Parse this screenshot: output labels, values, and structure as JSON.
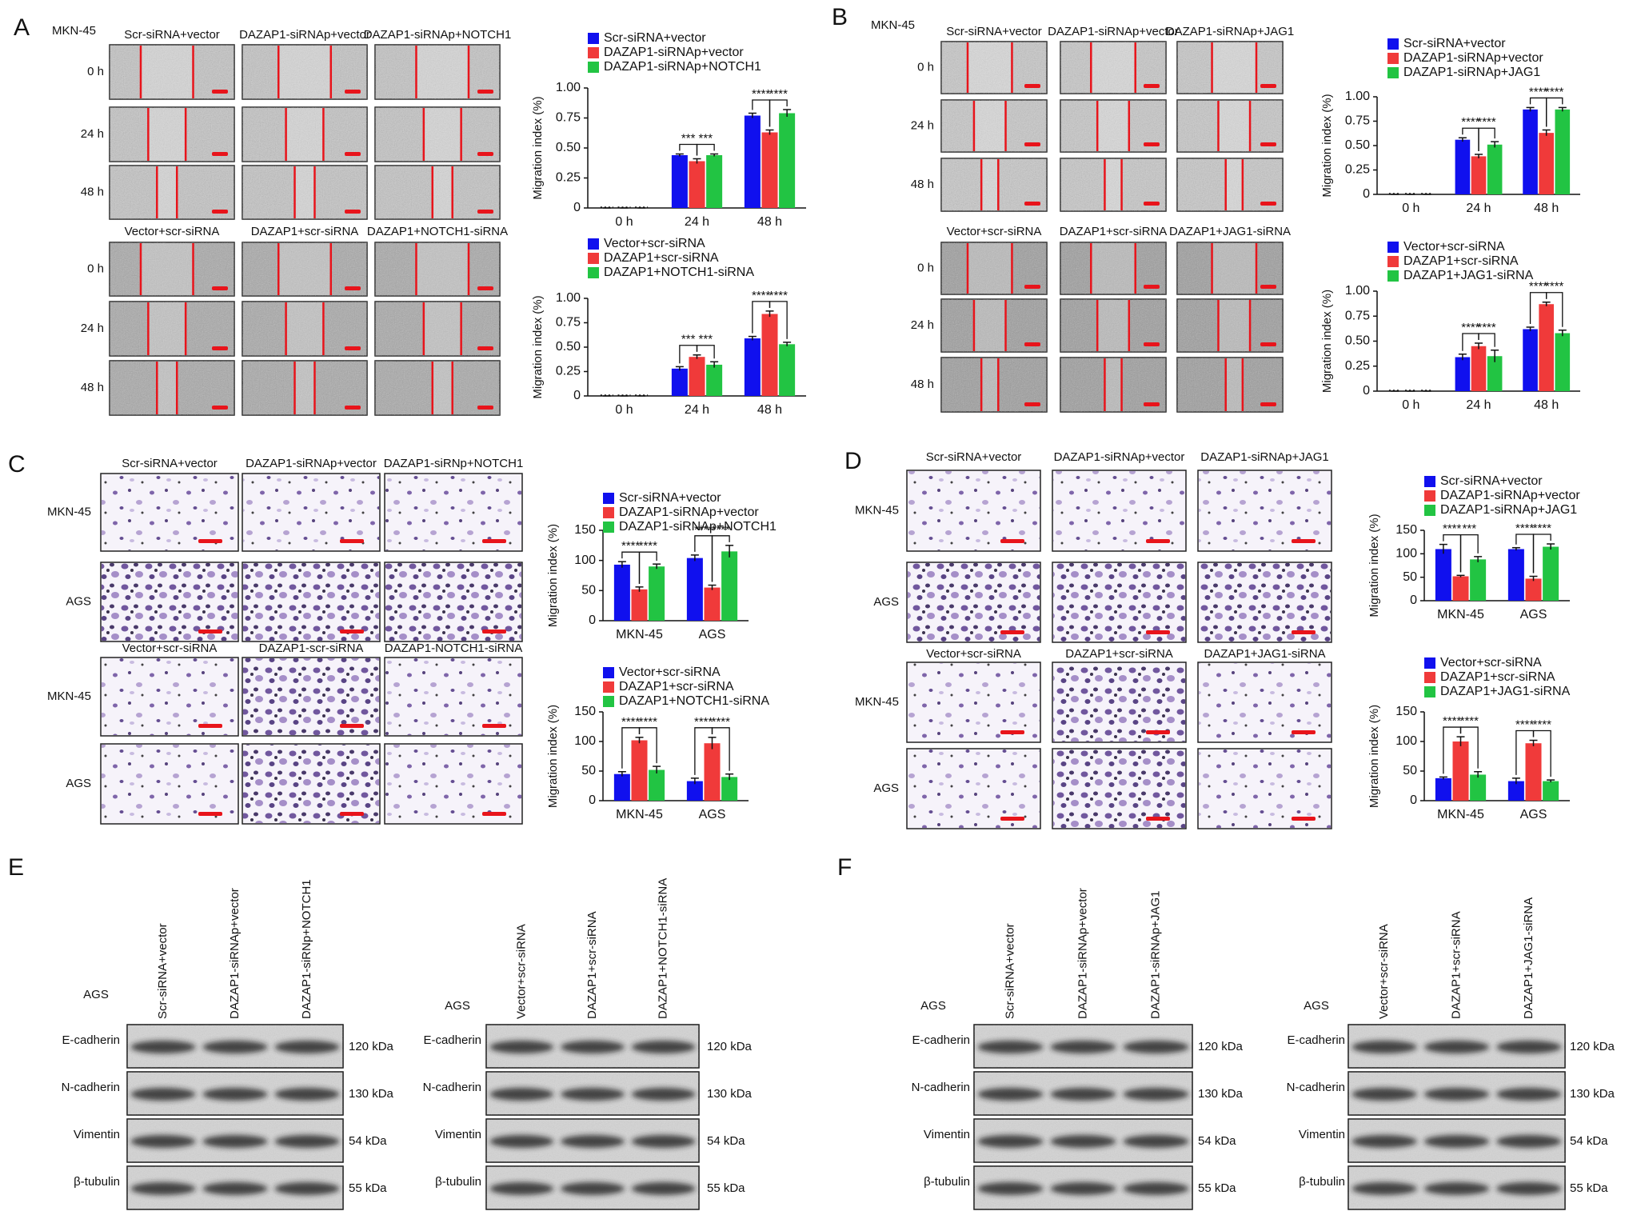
{
  "panel_labels": [
    "A",
    "B",
    "C",
    "D",
    "E",
    "F"
  ],
  "wound_assays": [
    {
      "cell_line": "MKN-45",
      "groups": [
        {
          "columns": [
            "Scr-siRNA+vector",
            "DAZAP1-siRNAp+vector",
            "DAZAP1-siRNAp+NOTCH1"
          ],
          "rows": [
            "0 h",
            "24 h",
            "48 h"
          ]
        },
        {
          "columns": [
            "Vector+scr-siRNA",
            "DAZAP1+scr-siRNA",
            "DAZAP1+NOTCH1-siRNA"
          ],
          "rows": [
            "0 h",
            "24 h",
            "48 h"
          ]
        }
      ]
    },
    {
      "cell_line": "MKN-45",
      "groups": [
        {
          "columns": [
            "Scr-siRNA+vector",
            "DAZAP1-siRNAp+vector",
            "DAZAP1-siRNAp+JAG1"
          ],
          "rows": [
            "0 h",
            "24 h",
            "48 h"
          ]
        },
        {
          "columns": [
            "Vector+scr-siRNA",
            "DAZAP1+scr-siRNA",
            "DAZAP1+JAG1-siRNA"
          ],
          "rows": [
            "0 h",
            "24 h",
            "48 h"
          ]
        }
      ]
    }
  ],
  "transwell_assays": [
    {
      "groups": [
        {
          "columns": [
            "Scr-siRNA+vector",
            "DAZAP1-siRNAp+vector",
            "DAZAP1-siRNp+NOTCH1"
          ],
          "rows": [
            "MKN-45",
            "AGS"
          ]
        },
        {
          "columns": [
            "Vector+scr-siRNA",
            "DAZAP1-scr-siRNA",
            "DAZAP1-NOTCH1-siRNA"
          ],
          "rows": [
            "MKN-45",
            "AGS"
          ]
        }
      ]
    },
    {
      "groups": [
        {
          "columns": [
            "Scr-siRNA+vector",
            "DAZAP1-siRNAp+vector",
            "DAZAP1-siRNAp+JAG1"
          ],
          "rows": [
            "MKN-45",
            "AGS"
          ]
        },
        {
          "columns": [
            "Vector+scr-siRNA",
            "DAZAP1+scr-siRNA",
            "DAZAP1+JAG1-siRNA"
          ],
          "rows": [
            "MKN-45",
            "AGS"
          ]
        }
      ]
    }
  ],
  "western_blots": [
    {
      "cell_line": "AGS",
      "lanes": [
        "Scr-siRNA+vector",
        "DAZAP1-siRNAp+vector",
        "DAZAP1-siRNp+NOTCH1"
      ],
      "proteins": [
        "E-cadherin",
        "N-cadherin",
        "Vimentin",
        "β-tubulin"
      ],
      "sizes": [
        "120 kDa",
        "130 kDa",
        "54 kDa",
        "55 kDa"
      ]
    },
    {
      "cell_line": "AGS",
      "lanes": [
        "Vector+scr-siRNA",
        "DAZAP1+scr-siRNA",
        "DAZAP1+NOTCH1-siRNA"
      ],
      "proteins": [
        "E-cadherin",
        "N-cadherin",
        "Vimentin",
        "β-tubulin"
      ],
      "sizes": [
        "120 kDa",
        "130 kDa",
        "54 kDa",
        "55 kDa"
      ]
    },
    {
      "cell_line": "AGS",
      "lanes": [
        "Scr-siRNA+vector",
        "DAZAP1-siRNAp+vector",
        "DAZAP1-siRNAp+JAG1"
      ],
      "proteins": [
        "E-cadherin",
        "N-cadherin",
        "Vimentin",
        "β-tubulin"
      ],
      "sizes": [
        "120 kDa",
        "130 kDa",
        "54 kDa",
        "55 kDa"
      ]
    },
    {
      "cell_line": "AGS",
      "lanes": [
        "Vector+scr-siRNA",
        "DAZAP1+scr-siRNA",
        "DAZAP1+JAG1-siRNA"
      ],
      "proteins": [
        "E-cadherin",
        "N-cadherin",
        "Vimentin",
        "β-tubulin"
      ],
      "sizes": [
        "120 kDa",
        "130 kDa",
        "54 kDa",
        "55 kDa"
      ]
    }
  ],
  "chart_data": [
    {
      "type": "bar",
      "y_label": "Migration index (%)",
      "categories": [
        "0 h",
        "24 h",
        "48 h"
      ],
      "ylim": [
        0,
        1.0
      ],
      "yticks": [
        0,
        {
          "value": 0.25,
          "label": "0.25"
        },
        {
          "value": 0.5,
          "label": "0.50"
        },
        {
          "value": 0.75,
          "label": "0.75"
        },
        {
          "value": 1.0,
          "label": "1.00"
        }
      ],
      "series": [
        {
          "name": "Scr-siRNA+vector",
          "color": "#1010ee",
          "values": [
            0,
            0.44,
            0.77
          ],
          "errors": [
            0,
            0.01,
            0.02
          ]
        },
        {
          "name": "DAZAP1-siRNAp+vector",
          "color": "#f03a3a",
          "values": [
            0,
            0.39,
            0.63
          ],
          "errors": [
            0,
            0.02,
            0.02
          ]
        },
        {
          "name": "DAZAP1-siRNAp+NOTCH1",
          "color": "#22c443",
          "values": [
            0,
            0.44,
            0.79
          ],
          "errors": [
            0,
            0.01,
            0.03
          ]
        }
      ],
      "significance": [
        [
          null,
          null
        ],
        [
          "***",
          "***"
        ],
        [
          "****",
          "****"
        ]
      ]
    },
    {
      "type": "bar",
      "y_label": "Migration index (%)",
      "categories": [
        "0 h",
        "24 h",
        "48 h"
      ],
      "ylim": [
        0,
        1.0
      ],
      "yticks": [
        0,
        {
          "value": 0.25,
          "label": "0.25"
        },
        {
          "value": 0.5,
          "label": "0.50"
        },
        {
          "value": 0.75,
          "label": "0.75"
        },
        {
          "value": 1.0,
          "label": "1.00"
        }
      ],
      "series": [
        {
          "name": "Vector+scr-siRNA",
          "color": "#1010ee",
          "values": [
            0,
            0.28,
            0.59
          ],
          "errors": [
            0,
            0.02,
            0.02
          ]
        },
        {
          "name": "DAZAP1+scr-siRNA",
          "color": "#f03a3a",
          "values": [
            0,
            0.4,
            0.84
          ],
          "errors": [
            0,
            0.02,
            0.03
          ]
        },
        {
          "name": "DAZAP1+NOTCH1-siRNA",
          "color": "#22c443",
          "values": [
            0,
            0.32,
            0.53
          ],
          "errors": [
            0,
            0.03,
            0.02
          ]
        }
      ],
      "significance": [
        [
          null,
          null
        ],
        [
          "***",
          "***"
        ],
        [
          "****",
          "****"
        ]
      ]
    },
    {
      "type": "bar",
      "y_label": "Migration index (%)",
      "categories": [
        "0 h",
        "24 h",
        "48 h"
      ],
      "ylim": [
        0,
        1.0
      ],
      "yticks": [
        0,
        {
          "value": 0.25,
          "label": "0.25"
        },
        {
          "value": 0.5,
          "label": "0.50"
        },
        {
          "value": 0.75,
          "label": "0.75"
        },
        {
          "value": 1.0,
          "label": "1.00"
        }
      ],
      "series": [
        {
          "name": "Scr-siRNA+vector",
          "color": "#1010ee",
          "values": [
            0,
            0.56,
            0.87
          ],
          "errors": [
            0,
            0.02,
            0.02
          ]
        },
        {
          "name": "DAZAP1-siRNAp+vector",
          "color": "#f03a3a",
          "values": [
            0,
            0.39,
            0.63
          ],
          "errors": [
            0,
            0.02,
            0.03
          ]
        },
        {
          "name": "DAZAP1-siRNAp+JAG1",
          "color": "#22c443",
          "values": [
            0,
            0.51,
            0.87
          ],
          "errors": [
            0,
            0.03,
            0.02
          ]
        }
      ],
      "significance": [
        [
          null,
          null
        ],
        [
          "****",
          "****"
        ],
        [
          "****",
          "****"
        ]
      ]
    },
    {
      "type": "bar",
      "y_label": "Migration index (%)",
      "categories": [
        "0 h",
        "24 h",
        "48 h"
      ],
      "ylim": [
        0,
        1.0
      ],
      "yticks": [
        0,
        {
          "value": 0.25,
          "label": "0.25"
        },
        {
          "value": 0.5,
          "label": "0.50"
        },
        {
          "value": 0.75,
          "label": "0.75"
        },
        {
          "value": 1.0,
          "label": "1.00"
        }
      ],
      "series": [
        {
          "name": "Vector+scr-siRNA",
          "color": "#1010ee",
          "values": [
            0,
            0.34,
            0.62
          ],
          "errors": [
            0,
            0.03,
            0.02
          ]
        },
        {
          "name": "DAZAP1+scr-siRNA",
          "color": "#f03a3a",
          "values": [
            0,
            0.45,
            0.87
          ],
          "errors": [
            0,
            0.03,
            0.02
          ]
        },
        {
          "name": "DAZAP1+JAG1-siRNA",
          "color": "#22c443",
          "values": [
            0,
            0.35,
            0.58
          ],
          "errors": [
            0,
            0.06,
            0.03
          ]
        }
      ],
      "significance": [
        [
          null,
          null
        ],
        [
          "****",
          "****"
        ],
        [
          "****",
          "****"
        ]
      ]
    },
    {
      "type": "bar",
      "y_label": "Migration index (%)",
      "categories": [
        "MKN-45",
        "AGS"
      ],
      "ylim": [
        0,
        150
      ],
      "yticks": [
        0,
        50,
        100,
        150
      ],
      "series": [
        {
          "name": "Scr-siRNA+vector",
          "color": "#1010ee",
          "values": [
            93,
            104
          ],
          "errors": [
            5,
            5
          ]
        },
        {
          "name": "DAZAP1-siRNAp+vector",
          "color": "#f03a3a",
          "values": [
            52,
            55
          ],
          "errors": [
            4,
            4
          ]
        },
        {
          "name": "DAZAP1-siRNAp+NOTCH1",
          "color": "#22c443",
          "values": [
            90,
            115
          ],
          "errors": [
            4,
            10
          ]
        }
      ],
      "significance": [
        [
          "****",
          "****"
        ],
        [
          "****",
          "****"
        ]
      ]
    },
    {
      "type": "bar",
      "y_label": "Migration index (%)",
      "categories": [
        "MKN-45",
        "AGS"
      ],
      "ylim": [
        0,
        150
      ],
      "yticks": [
        0,
        50,
        100,
        150
      ],
      "series": [
        {
          "name": "Vector+scr-siRNA",
          "color": "#1010ee",
          "values": [
            45,
            33
          ],
          "errors": [
            4,
            5
          ]
        },
        {
          "name": "DAZAP1+scr-siRNA",
          "color": "#f03a3a",
          "values": [
            102,
            97
          ],
          "errors": [
            5,
            10
          ]
        },
        {
          "name": "DAZAP1+NOTCH1-siRNA",
          "color": "#22c443",
          "values": [
            52,
            40
          ],
          "errors": [
            6,
            5
          ]
        }
      ],
      "significance": [
        [
          "****",
          "****"
        ],
        [
          "****",
          "****"
        ]
      ]
    },
    {
      "type": "bar",
      "y_label": "Migration index (%)",
      "categories": [
        "MKN-45",
        "AGS"
      ],
      "ylim": [
        0,
        150
      ],
      "yticks": [
        0,
        50,
        100,
        150
      ],
      "series": [
        {
          "name": "Scr-siRNA+vector",
          "color": "#1010ee",
          "values": [
            110,
            110
          ],
          "errors": [
            10,
            3
          ]
        },
        {
          "name": "DAZAP1-siRNAp+vector",
          "color": "#f03a3a",
          "values": [
            52,
            47
          ],
          "errors": [
            2,
            5
          ]
        },
        {
          "name": "DAZAP1-siRNAp+JAG1",
          "color": "#22c443",
          "values": [
            88,
            115
          ],
          "errors": [
            6,
            6
          ]
        }
      ],
      "significance": [
        [
          "****",
          "***"
        ],
        [
          "****",
          "****"
        ]
      ]
    },
    {
      "type": "bar",
      "y_label": "Migration index (%)",
      "categories": [
        "MKN-45",
        "AGS"
      ],
      "ylim": [
        0,
        150
      ],
      "yticks": [
        0,
        50,
        100,
        150
      ],
      "series": [
        {
          "name": "Vector+scr-siRNA",
          "color": "#1010ee",
          "values": [
            38,
            33
          ],
          "errors": [
            2,
            5
          ]
        },
        {
          "name": "DAZAP1+scr-siRNA",
          "color": "#f03a3a",
          "values": [
            100,
            97
          ],
          "errors": [
            8,
            5
          ]
        },
        {
          "name": "DAZAP1+JAG1-siRNA",
          "color": "#22c443",
          "values": [
            44,
            33
          ],
          "errors": [
            5,
            2
          ]
        }
      ],
      "significance": [
        [
          "****",
          "****"
        ],
        [
          "****",
          "****"
        ]
      ]
    }
  ]
}
